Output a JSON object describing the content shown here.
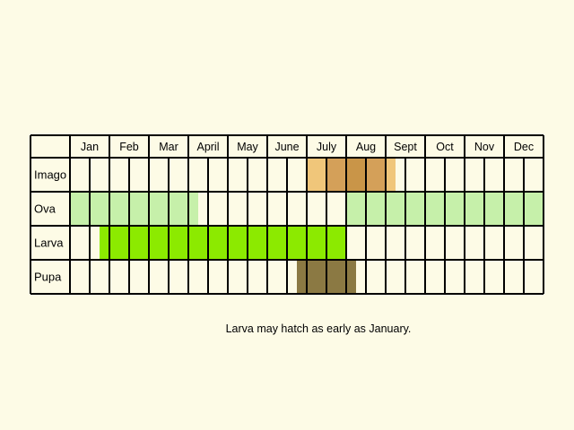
{
  "months": [
    "Jan",
    "Feb",
    "Mar",
    "April",
    "May",
    "June",
    "July",
    "Aug",
    "Sept",
    "Oct",
    "Nov",
    "Dec"
  ],
  "colors": {
    "background": "#fdfbe6",
    "grid": "#000000",
    "imago_light": "#f0c67a",
    "imago_dark": "#d4a059",
    "imago_darker": "#c99548",
    "ova": "#c6f0aa",
    "larva": "#8cea00",
    "pupa": "#8b7943"
  },
  "stages": [
    {
      "label": "Imago",
      "bars": [
        {
          "from": 12,
          "to": 13,
          "color_key": "imago_light"
        },
        {
          "from": 13,
          "to": 14,
          "color_key": "imago_dark"
        },
        {
          "from": 14,
          "to": 15,
          "color_key": "imago_darker"
        },
        {
          "from": 15,
          "to": 16,
          "color_key": "imago_dark"
        },
        {
          "from": 16,
          "to": 16.5,
          "color_key": "imago_light"
        }
      ]
    },
    {
      "label": "Ova",
      "bars": [
        {
          "from": 0,
          "to": 6.5,
          "color_key": "ova"
        },
        {
          "from": 14,
          "to": 24,
          "color_key": "ova"
        }
      ]
    },
    {
      "label": "Larva",
      "bars": [
        {
          "from": 1.5,
          "to": 14,
          "color_key": "larva"
        }
      ]
    },
    {
      "label": "Pupa",
      "bars": [
        {
          "from": 11.5,
          "to": 14.5,
          "color_key": "pupa"
        }
      ]
    }
  ],
  "note": "Larva may hatch as early as January."
}
